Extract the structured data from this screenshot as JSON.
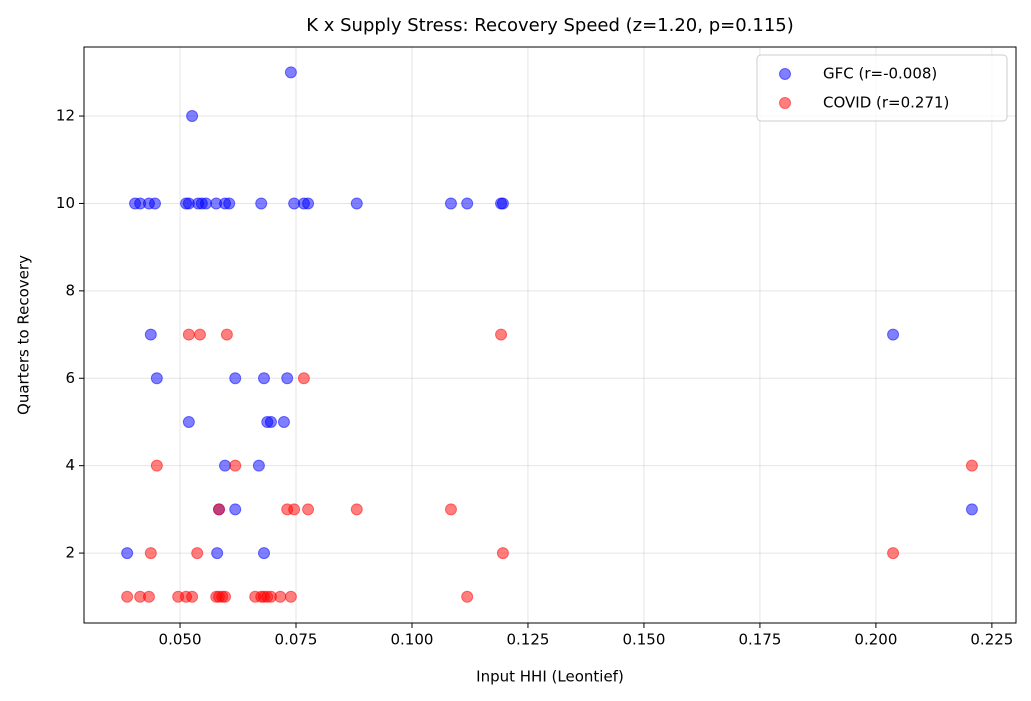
{
  "chart_data": {
    "type": "scatter",
    "title": "K x Supply Stress: Recovery Speed (z=1.20, p=0.115)",
    "x_label": "Input HHI (Leontief)",
    "y_label": "Quarters to Recovery",
    "xlim": [
      0.0293,
      0.2302
    ],
    "ylim": [
      0.4,
      13.58
    ],
    "xticks": [
      {
        "value": 0.05,
        "label": "0.050"
      },
      {
        "value": 0.075,
        "label": "0.075"
      },
      {
        "value": 0.1,
        "label": "0.100"
      },
      {
        "value": 0.125,
        "label": "0.125"
      },
      {
        "value": 0.15,
        "label": "0.150"
      },
      {
        "value": 0.175,
        "label": "0.175"
      },
      {
        "value": 0.2,
        "label": "0.200"
      },
      {
        "value": 0.225,
        "label": "0.225"
      }
    ],
    "yticks": [
      2,
      4,
      6,
      8,
      10,
      12
    ],
    "grid": true,
    "legend": "upper right",
    "series": [
      {
        "name": "GFC (r=-0.008)",
        "color": "#0000ff",
        "x": [
          0.0739,
          0.0526,
          0.0403,
          0.0414,
          0.0433,
          0.0446,
          0.0513,
          0.0519,
          0.0539,
          0.0547,
          0.0556,
          0.0578,
          0.0597,
          0.0606,
          0.0675,
          0.0746,
          0.0767,
          0.0776,
          0.0881,
          0.1084,
          0.1119,
          0.1192,
          0.1196,
          0.0437,
          0.2037,
          0.045,
          0.0619,
          0.0681,
          0.0731,
          0.0519,
          0.0688,
          0.0696,
          0.0724,
          0.0597,
          0.067,
          0.0584,
          0.0619,
          0.2207,
          0.0386,
          0.058,
          0.0681
        ],
        "values": [
          13,
          12,
          10,
          10,
          10,
          10,
          10,
          10,
          10,
          10,
          10,
          10,
          10,
          10,
          10,
          10,
          10,
          10,
          10,
          10,
          10,
          10,
          10,
          7,
          7,
          6,
          6,
          6,
          6,
          5,
          5,
          5,
          5,
          4,
          4,
          3,
          3,
          3,
          2,
          2,
          2
        ]
      },
      {
        "name": "COVID (r=0.271)",
        "color": "#ff0000",
        "x": [
          0.0519,
          0.0543,
          0.0601,
          0.1192,
          0.0767,
          0.045,
          0.0619,
          0.2207,
          0.0584,
          0.0731,
          0.0746,
          0.0776,
          0.0881,
          0.1084,
          0.0437,
          0.0537,
          0.1196,
          0.2037,
          0.0386,
          0.0414,
          0.0433,
          0.0496,
          0.0513,
          0.0526,
          0.0578,
          0.0584,
          0.0591,
          0.0597,
          0.0662,
          0.0675,
          0.0681,
          0.0688,
          0.0696,
          0.0716,
          0.0739,
          0.1119
        ],
        "values": [
          7,
          7,
          7,
          7,
          6,
          4,
          4,
          4,
          3,
          3,
          3,
          3,
          3,
          3,
          2,
          2,
          2,
          2,
          1,
          1,
          1,
          1,
          1,
          1,
          1,
          1,
          1,
          1,
          1,
          1,
          1,
          1,
          1,
          1,
          1,
          1
        ]
      }
    ]
  }
}
